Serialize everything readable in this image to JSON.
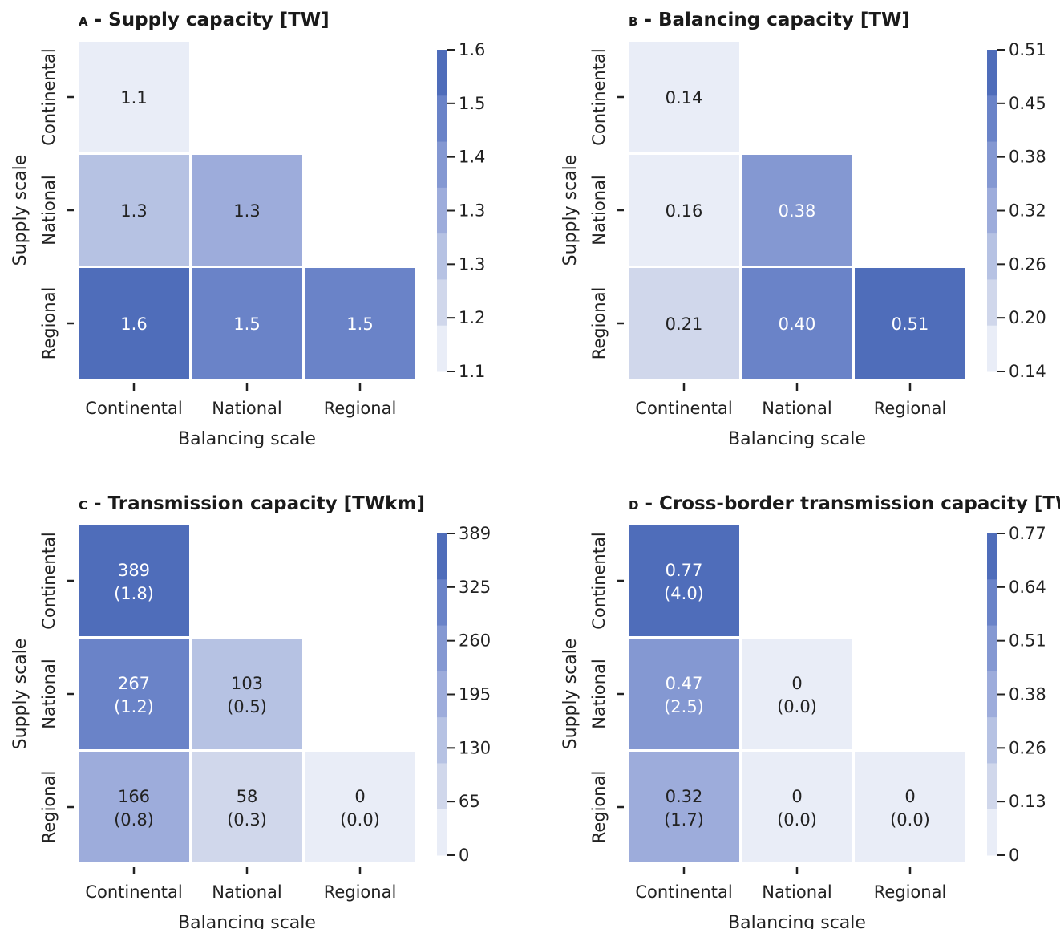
{
  "chart_data": [
    {
      "type": "heatmap",
      "panel_letter": "A",
      "title": "Supply capacity [TW]",
      "xlabel": "Balancing scale",
      "ylabel": "Supply scale",
      "x_categories": [
        "Continental",
        "National",
        "Regional"
      ],
      "y_categories": [
        "Continental",
        "National",
        "Regional"
      ],
      "cells": [
        {
          "y": "Continental",
          "x": "Continental",
          "value": 1.1,
          "label": "1.1"
        },
        {
          "y": "National",
          "x": "Continental",
          "value": 1.3,
          "label": "1.3"
        },
        {
          "y": "National",
          "x": "National",
          "value": 1.3,
          "label": "1.3"
        },
        {
          "y": "Regional",
          "x": "Continental",
          "value": 1.6,
          "label": "1.6"
        },
        {
          "y": "Regional",
          "x": "National",
          "value": 1.5,
          "label": "1.5"
        },
        {
          "y": "Regional",
          "x": "Regional",
          "value": 1.5,
          "label": "1.5"
        }
      ],
      "colorbar_ticks": [
        "1.6",
        "1.5",
        "1.4",
        "1.3",
        "1.3",
        "1.2",
        "1.1"
      ],
      "colorbar_range": [
        1.1,
        1.6
      ],
      "level_indices": [
        [
          0
        ],
        [
          2,
          3
        ],
        [
          6,
          5,
          5
        ]
      ]
    },
    {
      "type": "heatmap",
      "panel_letter": "B",
      "title": "Balancing capacity [TW]",
      "xlabel": "Balancing scale",
      "ylabel": "Supply scale",
      "x_categories": [
        "Continental",
        "National",
        "Regional"
      ],
      "y_categories": [
        "Continental",
        "National",
        "Regional"
      ],
      "cells": [
        {
          "y": "Continental",
          "x": "Continental",
          "value": 0.14,
          "label": "0.14"
        },
        {
          "y": "National",
          "x": "Continental",
          "value": 0.16,
          "label": "0.16"
        },
        {
          "y": "National",
          "x": "National",
          "value": 0.38,
          "label": "0.38"
        },
        {
          "y": "Regional",
          "x": "Continental",
          "value": 0.21,
          "label": "0.21"
        },
        {
          "y": "Regional",
          "x": "National",
          "value": 0.4,
          "label": "0.40"
        },
        {
          "y": "Regional",
          "x": "Regional",
          "value": 0.51,
          "label": "0.51"
        }
      ],
      "colorbar_ticks": [
        "0.51",
        "0.45",
        "0.38",
        "0.32",
        "0.26",
        "0.20",
        "0.14"
      ],
      "colorbar_range": [
        0.14,
        0.51
      ],
      "level_indices": [
        [
          0
        ],
        [
          0,
          4
        ],
        [
          1,
          5,
          6
        ]
      ]
    },
    {
      "type": "heatmap",
      "panel_letter": "C",
      "title": "Transmission capacity [TWkm]",
      "xlabel": "Balancing scale",
      "ylabel": "Supply scale",
      "x_categories": [
        "Continental",
        "National",
        "Regional"
      ],
      "y_categories": [
        "Continental",
        "National",
        "Regional"
      ],
      "cells": [
        {
          "y": "Continental",
          "x": "Continental",
          "value": 389,
          "label": "389",
          "sublabel": "(1.8)"
        },
        {
          "y": "National",
          "x": "Continental",
          "value": 267,
          "label": "267",
          "sublabel": "(1.2)"
        },
        {
          "y": "National",
          "x": "National",
          "value": 103,
          "label": "103",
          "sublabel": "(0.5)"
        },
        {
          "y": "Regional",
          "x": "Continental",
          "value": 166,
          "label": "166",
          "sublabel": "(0.8)"
        },
        {
          "y": "Regional",
          "x": "National",
          "value": 58,
          "label": "58",
          "sublabel": "(0.3)"
        },
        {
          "y": "Regional",
          "x": "Regional",
          "value": 0,
          "label": "0",
          "sublabel": "(0.0)"
        }
      ],
      "colorbar_ticks": [
        "389",
        "325",
        "260",
        "195",
        "130",
        "65",
        "0"
      ],
      "colorbar_range": [
        0,
        389
      ],
      "level_indices": [
        [
          6
        ],
        [
          5,
          2
        ],
        [
          3,
          1,
          0
        ]
      ]
    },
    {
      "type": "heatmap",
      "panel_letter": "D",
      "title": "Cross-border transmission capacity [TW]",
      "xlabel": "Balancing scale",
      "ylabel": "Supply scale",
      "x_categories": [
        "Continental",
        "National",
        "Regional"
      ],
      "y_categories": [
        "Continental",
        "National",
        "Regional"
      ],
      "cells": [
        {
          "y": "Continental",
          "x": "Continental",
          "value": 0.77,
          "label": "0.77",
          "sublabel": "(4.0)"
        },
        {
          "y": "National",
          "x": "Continental",
          "value": 0.47,
          "label": "0.47",
          "sublabel": "(2.5)"
        },
        {
          "y": "National",
          "x": "National",
          "value": 0,
          "label": "0",
          "sublabel": "(0.0)"
        },
        {
          "y": "Regional",
          "x": "Continental",
          "value": 0.32,
          "label": "0.32",
          "sublabel": "(1.7)"
        },
        {
          "y": "Regional",
          "x": "National",
          "value": 0,
          "label": "0",
          "sublabel": "(0.0)"
        },
        {
          "y": "Regional",
          "x": "Regional",
          "value": 0,
          "label": "0",
          "sublabel": "(0.0)"
        }
      ],
      "colorbar_ticks": [
        "0.77",
        "0.64",
        "0.51",
        "0.38",
        "0.26",
        "0.13",
        "0"
      ],
      "colorbar_range": [
        0,
        0.77
      ],
      "level_indices": [
        [
          6
        ],
        [
          4,
          0
        ],
        [
          3,
          0,
          0
        ]
      ]
    }
  ],
  "colors": {
    "levels": [
      "#e9edf7",
      "#d0d7eb",
      "#b6c2e3",
      "#9dacdb",
      "#8498d2",
      "#6a83c8",
      "#4f6dba"
    ],
    "grid_line": "#ffffff",
    "text_dark": "#222222",
    "text_light": "#ffffff"
  }
}
